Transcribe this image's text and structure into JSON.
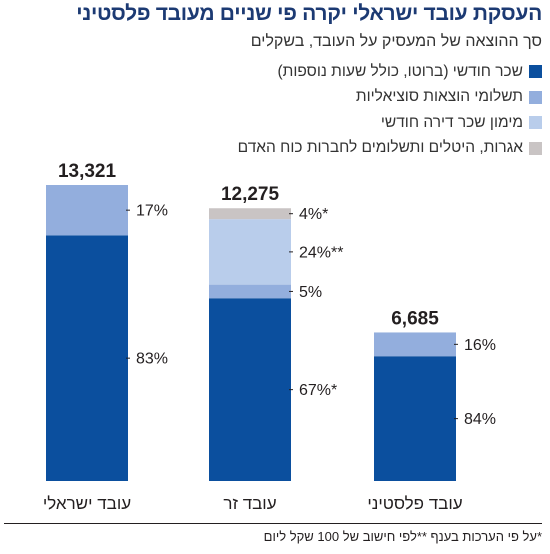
{
  "title": "העסקת עובד ישראלי יקרה פי שניים מעובד פלסטיני",
  "subtitle": "סך ההוצאה של המעסיק על העובד, בשקלים",
  "footnote": "*על פי הערכות בענף **לפי חישוב של 100 שקל ליום",
  "legend": [
    {
      "label": "שכר חודשי (ברוטו, כולל שעות נוספות)",
      "color": "#0b4f9e"
    },
    {
      "label": "תשלומי הוצאות סוציאליות",
      "color": "#93aedd"
    },
    {
      "label": "מימון שכר דירה חודשי",
      "color": "#b9cdeb"
    },
    {
      "label": "אגרות, היטלים ותשלומים לחברות כוח האדם",
      "color": "#c9c4c4"
    }
  ],
  "chart_data": {
    "type": "bar",
    "stacked": true,
    "unit": "₪",
    "categories": [
      "עובד ישראלי",
      "עובד זר",
      "עובד פלסטיני"
    ],
    "totals": [
      13321,
      12275,
      6685
    ],
    "total_labels": [
      "13,321",
      "12,275",
      "6,685"
    ],
    "series": [
      {
        "name": "שכר חודשי (ברוטו, כולל שעות נוספות)",
        "color": "#0b4f9e",
        "percent": [
          83,
          67,
          84
        ],
        "labels": [
          "83%",
          "67%*",
          "84%"
        ]
      },
      {
        "name": "תשלומי הוצאות סוציאליות",
        "color": "#93aedd",
        "percent": [
          17,
          5,
          16
        ],
        "labels": [
          "17%",
          "5%",
          "16%"
        ]
      },
      {
        "name": "מימון שכר דירה חודשי",
        "color": "#b9cdeb",
        "percent": [
          0,
          24,
          0
        ],
        "labels": [
          "",
          "24%**",
          ""
        ]
      },
      {
        "name": "אגרות, היטלים ותשלומים לחברות כוח האדם",
        "color": "#c9c4c4",
        "percent": [
          0,
          4,
          0
        ],
        "labels": [
          "",
          "4%*",
          ""
        ]
      }
    ],
    "ylim": [
      0,
      13321
    ],
    "grid": false,
    "legend_position": "top-right"
  }
}
